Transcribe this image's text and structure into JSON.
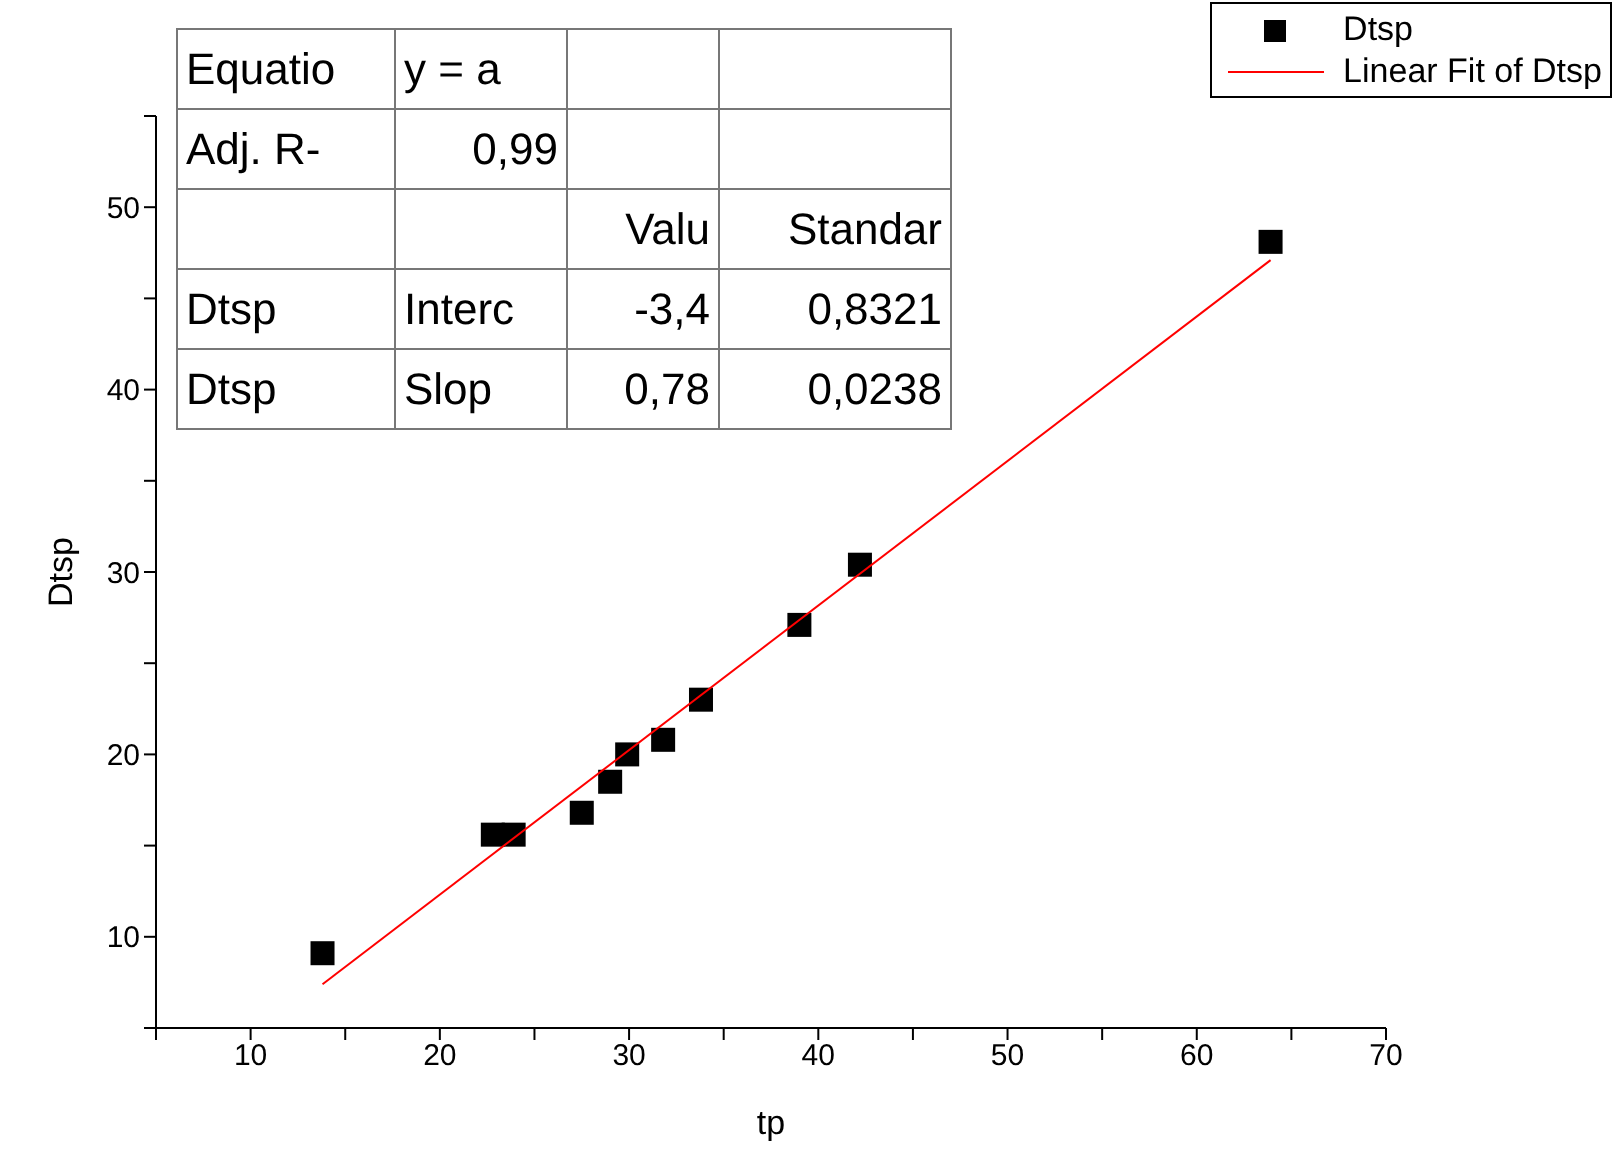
{
  "chart_data": {
    "type": "scatter",
    "xlabel": "tp",
    "ylabel": "Dtsp",
    "xlim": [
      5,
      70
    ],
    "ylim": [
      5,
      55
    ],
    "xticks": [
      {
        "value": 5,
        "label": null
      },
      10,
      {
        "value": 15,
        "label": null
      },
      20,
      {
        "value": 25,
        "label": null
      },
      30,
      {
        "value": 35,
        "label": null
      },
      40,
      {
        "value": 45,
        "label": null
      },
      50,
      {
        "value": 55,
        "label": null
      },
      60,
      {
        "value": 65,
        "label": null
      },
      70
    ],
    "yticks": [
      {
        "value": 5,
        "label": null
      },
      10,
      {
        "value": 15,
        "label": null
      },
      20,
      {
        "value": 25,
        "label": null
      },
      30,
      {
        "value": 35,
        "label": null
      },
      40,
      {
        "value": 45,
        "label": null
      },
      50,
      {
        "value": 55,
        "label": null
      }
    ],
    "series": [
      {
        "name": "Dtsp",
        "color": "#000000",
        "marker": "square",
        "x": [
          13.8,
          22.8,
          23.9,
          27.5,
          29.0,
          29.9,
          31.8,
          33.8,
          39.0,
          42.2,
          63.9
        ],
        "values": [
          9.1,
          15.6,
          15.6,
          16.8,
          18.5,
          20.0,
          20.8,
          23.0,
          27.1,
          30.4,
          48.1
        ]
      },
      {
        "name": "Linear Fit of Dtsp",
        "type": "line",
        "color": "#ff0000",
        "marker": "none",
        "x": [
          13.8,
          63.9
        ],
        "values": [
          7.4,
          47.1
        ]
      }
    ],
    "legend": "top right",
    "grid": false,
    "annotations": [
      "Equatio",
      "y = a",
      "Adj. R-",
      "0,99",
      "Valu",
      "Standar",
      "Dtsp",
      "Interc",
      "-3,4",
      "0,8321",
      "Dtsp",
      "Slop",
      "0,78",
      "0,0238"
    ]
  }
}
